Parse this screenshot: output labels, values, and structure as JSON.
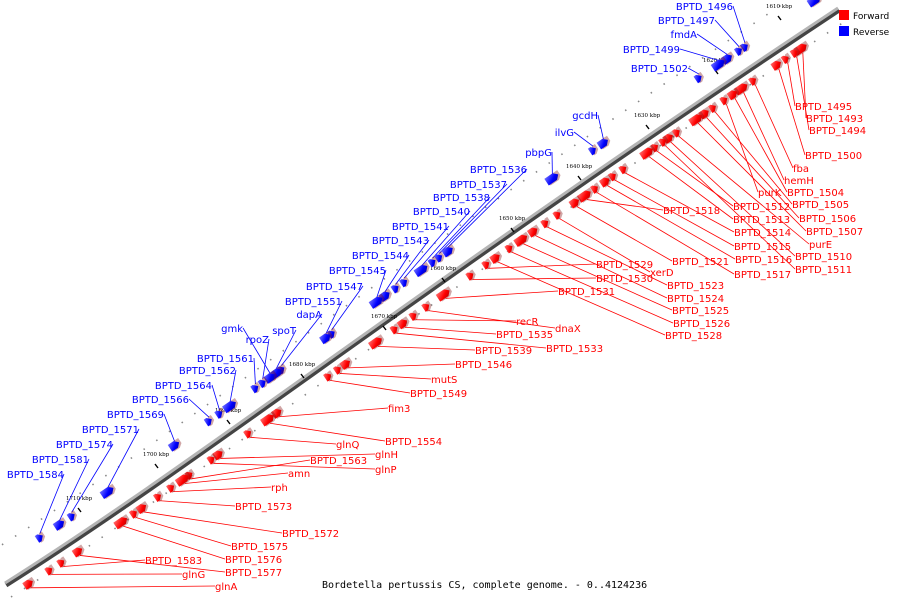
{
  "caption": "Bordetella pertussis CS, complete genome. - 0..4124236",
  "legend": [
    {
      "label": "Forward",
      "color": "#ff0000"
    },
    {
      "label": "Reverse",
      "color": "#0000ff"
    }
  ],
  "colors": {
    "forward": "#ff0000",
    "reverse": "#0000ff",
    "backbone": "#808080"
  },
  "scale_labels": [
    "1610 kbp",
    "1620 kbp",
    "1630 kbp",
    "1640 kbp",
    "1650 kbp",
    "1660 kbp",
    "1670 kbp",
    "1680 kbp",
    "1690 kbp",
    "1700 kbp",
    "1710 kbp"
  ],
  "forward_genes": [
    "BPTD_1493",
    "BPTD_1494",
    "BPTD_1495",
    "BPTD_1500",
    "fba",
    "hemH",
    "BPTD_1504",
    "purK",
    "BPTD_1505",
    "BPTD_1506",
    "BPTD_1507",
    "purE",
    "BPTD_1510",
    "BPTD_1511",
    "BPTD_1512",
    "BPTD_1513",
    "BPTD_1514",
    "BPTD_1515",
    "BPTD_1516",
    "BPTD_1517",
    "BPTD_1518",
    "BPTD_1521",
    "xerD",
    "BPTD_1523",
    "BPTD_1524",
    "BPTD_1525",
    "BPTD_1526",
    "BPTD_1528",
    "BPTD_1529",
    "BPTD_1530",
    "BPTD_1531",
    "dnaX",
    "recR",
    "BPTD_1535",
    "BPTD_1533",
    "BPTD_1539",
    "BPTD_1546",
    "mutS",
    "BPTD_1549",
    "fim3",
    "BPTD_1554",
    "glnQ",
    "glnH",
    "glnP",
    "BPTD_1563",
    "amn",
    "rph",
    "BPTD_1573",
    "BPTD_1572",
    "BPTD_1575",
    "BPTD_1576",
    "BPTD_1577",
    "BPTD_1583",
    "glnG",
    "glnA"
  ],
  "reverse_genes": [
    "BPTD_1496",
    "BPTD_1497",
    "fmdA",
    "BPTD_1499",
    "BPTD_1502",
    "gcdH",
    "ilvG",
    "pbpG",
    "BPTD_1536",
    "BPTD_1537",
    "BPTD_1538",
    "BPTD_1540",
    "BPTD_1541",
    "BPTD_1543",
    "BPTD_1544",
    "BPTD_1545",
    "BPTD_1547",
    "BPTD_1551",
    "dapA",
    "spoT",
    "gmk",
    "rpoZ",
    "BPTD_1561",
    "BPTD_1562",
    "BPTD_1564",
    "BPTD_1566",
    "BPTD_1569",
    "BPTD_1571",
    "BPTD_1574",
    "BPTD_1581",
    "BPTD_1584"
  ]
}
